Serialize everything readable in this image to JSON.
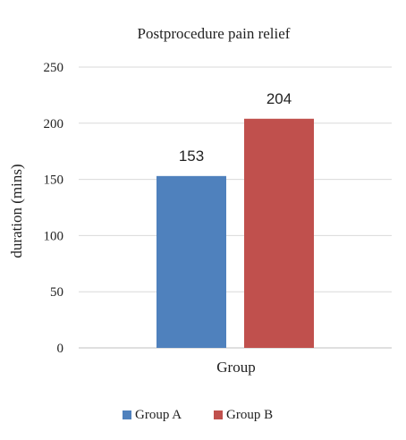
{
  "chart_data": {
    "type": "bar",
    "title": "Postprocedure pain relief",
    "xlabel": "Group",
    "ylabel": "duration (mins)",
    "ylim": [
      0,
      250
    ],
    "yticks": [
      0,
      50,
      100,
      150,
      200,
      250
    ],
    "grid": true,
    "legend_position": "bottom",
    "categories": [
      "Group"
    ],
    "series": [
      {
        "name": "Group A",
        "values": [
          153
        ],
        "color": "#4F81BD"
      },
      {
        "name": "Group B",
        "values": [
          204
        ],
        "color": "#C0504D"
      }
    ],
    "data_labels": true
  }
}
